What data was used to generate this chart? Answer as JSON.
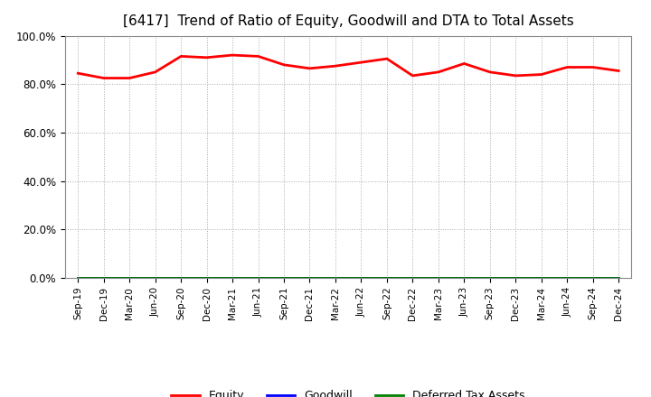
{
  "title": "[6417]  Trend of Ratio of Equity, Goodwill and DTA to Total Assets",
  "x_labels": [
    "Sep-19",
    "Dec-19",
    "Mar-20",
    "Jun-20",
    "Sep-20",
    "Dec-20",
    "Mar-21",
    "Jun-21",
    "Sep-21",
    "Dec-21",
    "Mar-22",
    "Jun-22",
    "Sep-22",
    "Dec-22",
    "Mar-23",
    "Jun-23",
    "Sep-23",
    "Dec-23",
    "Mar-24",
    "Jun-24",
    "Sep-24",
    "Dec-24"
  ],
  "equity": [
    84.5,
    82.5,
    82.5,
    85.0,
    91.5,
    91.0,
    92.0,
    91.5,
    88.0,
    86.5,
    87.5,
    89.0,
    90.5,
    83.5,
    85.0,
    88.5,
    85.0,
    83.5,
    84.0,
    87.0,
    87.0,
    85.5
  ],
  "goodwill": [
    0.1,
    0.1,
    0.1,
    0.1,
    0.1,
    0.1,
    0.1,
    0.1,
    0.1,
    0.1,
    0.1,
    0.1,
    0.1,
    0.1,
    0.1,
    0.1,
    0.1,
    0.1,
    0.1,
    0.1,
    0.1,
    0.1
  ],
  "dta": [
    0.0,
    0.0,
    0.0,
    0.0,
    0.0,
    0.0,
    0.0,
    0.0,
    0.0,
    0.0,
    0.0,
    0.0,
    0.0,
    0.0,
    0.0,
    0.0,
    0.0,
    0.0,
    0.0,
    0.0,
    0.0,
    0.0
  ],
  "equity_color": "#ff0000",
  "goodwill_color": "#0000ff",
  "dta_color": "#008000",
  "ylim": [
    0,
    100
  ],
  "yticks": [
    0,
    20,
    40,
    60,
    80,
    100
  ],
  "ytick_labels": [
    "0.0%",
    "20.0%",
    "40.0%",
    "60.0%",
    "80.0%",
    "100.0%"
  ],
  "background_color": "#ffffff",
  "plot_bg_color": "#ffffff",
  "grid_color": "#aaaaaa",
  "title_fontsize": 11,
  "legend_labels": [
    "Equity",
    "Goodwill",
    "Deferred Tax Assets"
  ],
  "line_width": 2.0
}
